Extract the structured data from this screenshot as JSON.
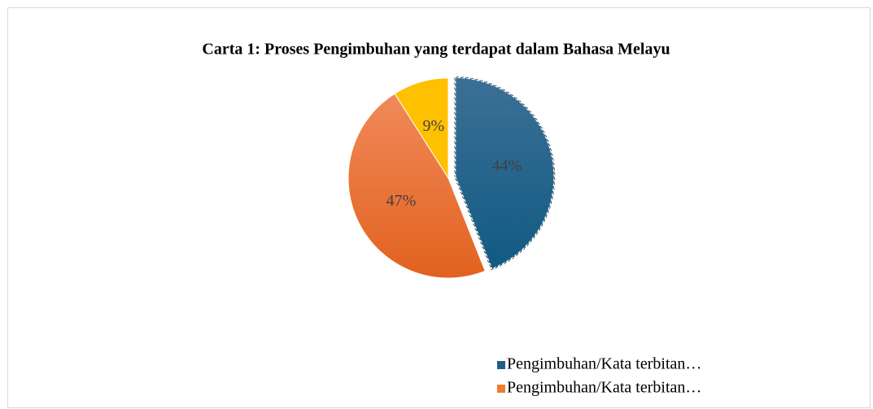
{
  "chart_data": {
    "type": "pie",
    "title": "Carta 1: Proses Pengimbuhan yang terdapat dalam Bahasa Melayu",
    "categories": [
      "Pengimbuhan/Kata terbitan…",
      "Pengimbuhan/Kata terbitan…",
      null
    ],
    "values": [
      44,
      47,
      9
    ],
    "value_labels": [
      "44%",
      "47%",
      "9%"
    ],
    "colors": [
      "#1f5f86",
      "#ed7d31",
      "#ffc000"
    ],
    "explode": [
      true,
      false,
      false
    ],
    "legend": "bottom-right"
  }
}
